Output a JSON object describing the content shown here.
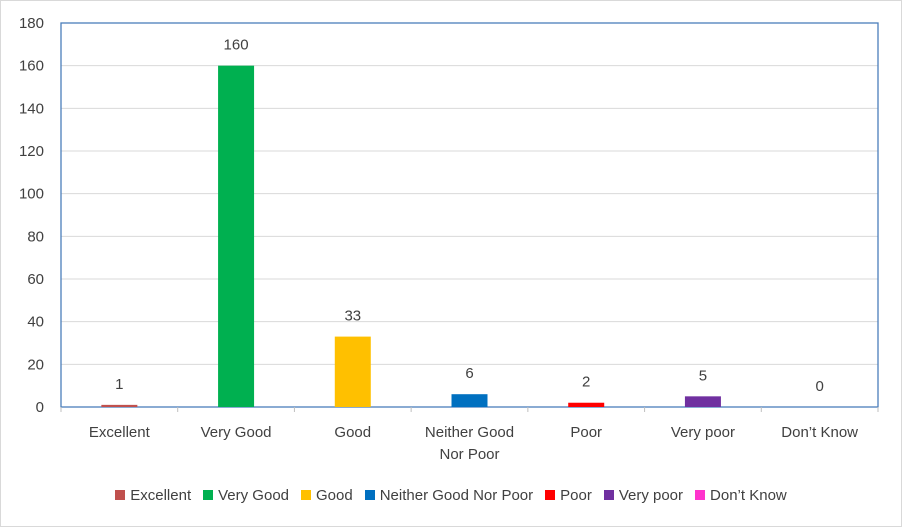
{
  "chart_data": {
    "type": "bar",
    "categories": [
      "Excellent",
      "Very Good",
      "Good",
      "Neither Good Nor Poor",
      "Poor",
      "Very poor",
      "Don’t Know"
    ],
    "category_lines": [
      [
        "Excellent"
      ],
      [
        "Very Good"
      ],
      [
        "Good"
      ],
      [
        "Neither Good",
        "Nor Poor"
      ],
      [
        "Poor"
      ],
      [
        "Very poor"
      ],
      [
        "Don’t Know"
      ]
    ],
    "values": [
      1,
      160,
      33,
      6,
      2,
      5,
      0
    ],
    "data_labels": [
      "1",
      "160",
      "33",
      "6",
      "2",
      "5",
      "0"
    ],
    "colors": [
      "#c0504d",
      "#00b050",
      "#ffc000",
      "#0070c0",
      "#ff0000",
      "#7030a0",
      "#ff33cc"
    ],
    "ylim": [
      0,
      180
    ],
    "yticks": [
      0,
      20,
      40,
      60,
      80,
      100,
      120,
      140,
      160,
      180
    ],
    "grid": true,
    "legend": "bottom",
    "plot_border_color": "#4a7ebb",
    "title": "",
    "xlabel": "",
    "ylabel": ""
  },
  "legend_items": [
    {
      "label": "Excellent",
      "color": "#c0504d"
    },
    {
      "label": "Very Good",
      "color": "#00b050"
    },
    {
      "label": "Good",
      "color": "#ffc000"
    },
    {
      "label": "Neither Good Nor Poor",
      "color": "#0070c0"
    },
    {
      "label": "Poor",
      "color": "#ff0000"
    },
    {
      "label": "Very poor",
      "color": "#7030a0"
    },
    {
      "label": "Don’t Know",
      "color": "#ff33cc"
    }
  ]
}
